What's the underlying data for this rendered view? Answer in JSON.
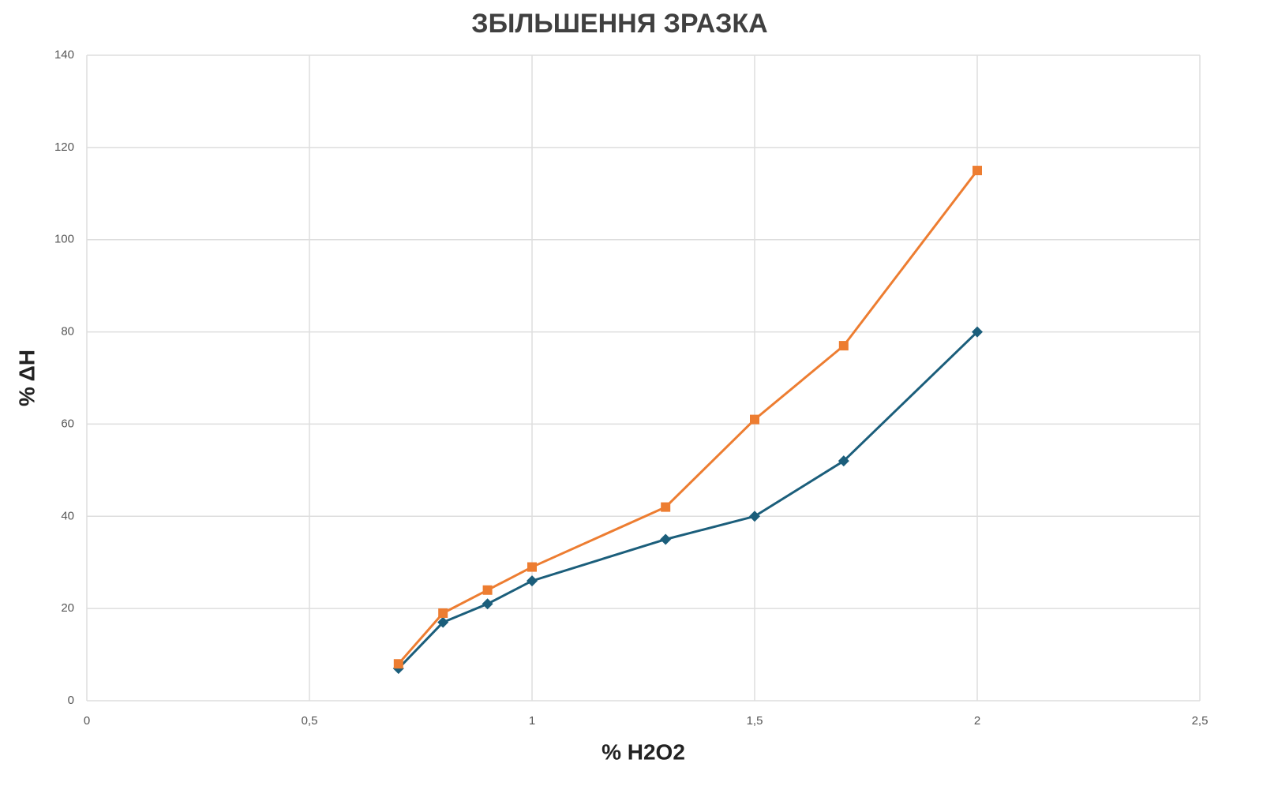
{
  "chart_data": {
    "type": "line",
    "title": "ЗБІЛЬШЕННЯ ЗРАЗКА",
    "x_label": "% H2O2",
    "y_label": "% ΔH",
    "x": [
      0.7,
      0.8,
      0.9,
      1,
      1.3,
      1.5,
      1.7,
      2
    ],
    "series": [
      {
        "color": "#1b5e7b",
        "marker": "diamond",
        "values": [
          7,
          17,
          21,
          26,
          35,
          40,
          52,
          80
        ]
      },
      {
        "color": "#ed7d31",
        "marker": "square",
        "values": [
          8,
          19,
          24,
          29,
          42,
          61,
          77,
          115
        ]
      }
    ],
    "xlim": [
      0,
      2.5
    ],
    "xticks": [
      0,
      {
        "value": 0.5,
        "label": "0,5"
      },
      1,
      {
        "value": 1.5,
        "label": "1,5"
      },
      2,
      {
        "value": 2.5,
        "label": "2,5"
      }
    ],
    "ylim": [
      0,
      140
    ],
    "yticks": [
      0,
      20,
      40,
      60,
      80,
      100,
      120,
      140
    ],
    "grid": true
  }
}
